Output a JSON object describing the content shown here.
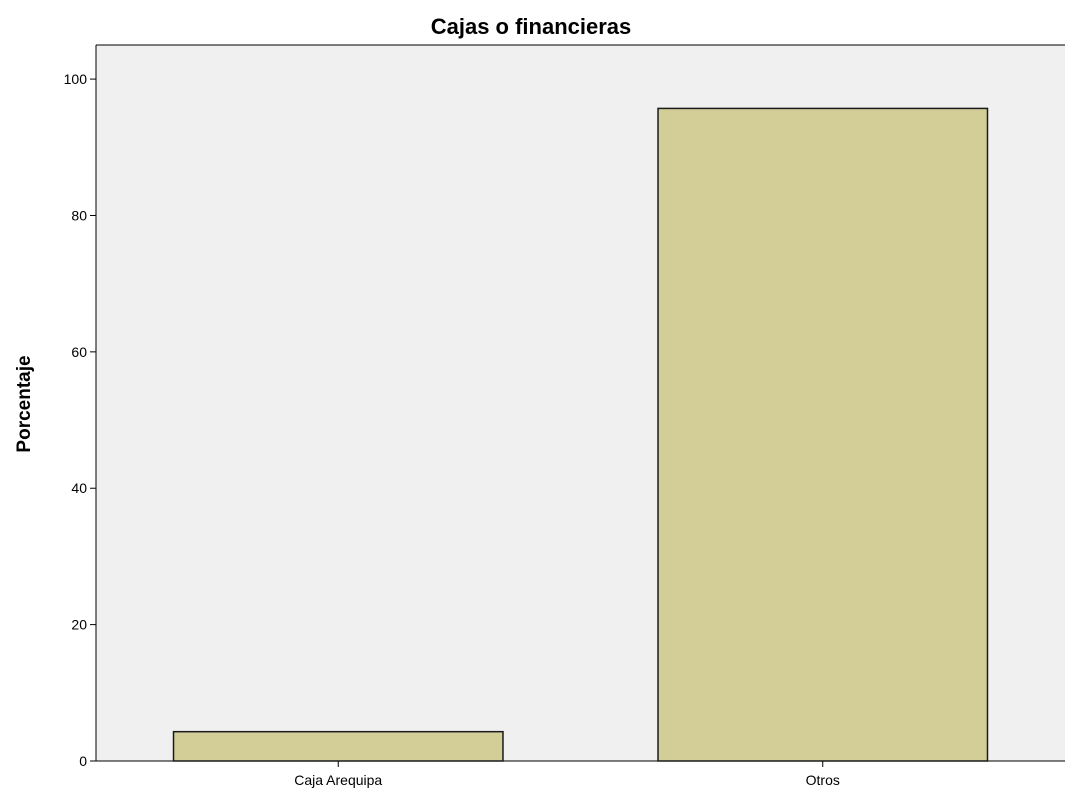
{
  "chart_data": {
    "type": "bar",
    "title": "Cajas o financieras",
    "xlabel": "",
    "ylabel": "Porcentaje",
    "categories": [
      "Caja Arequipa",
      "Otros"
    ],
    "values": [
      4.3,
      95.7
    ],
    "ylim": [
      0,
      105
    ],
    "yticks": [
      0,
      20,
      40,
      60,
      80,
      100
    ],
    "grid": false,
    "colors": {
      "plot_background": "#f0f0f0",
      "bar_fill": "#d3ce97",
      "bar_stroke": "#1a1a1a"
    }
  }
}
